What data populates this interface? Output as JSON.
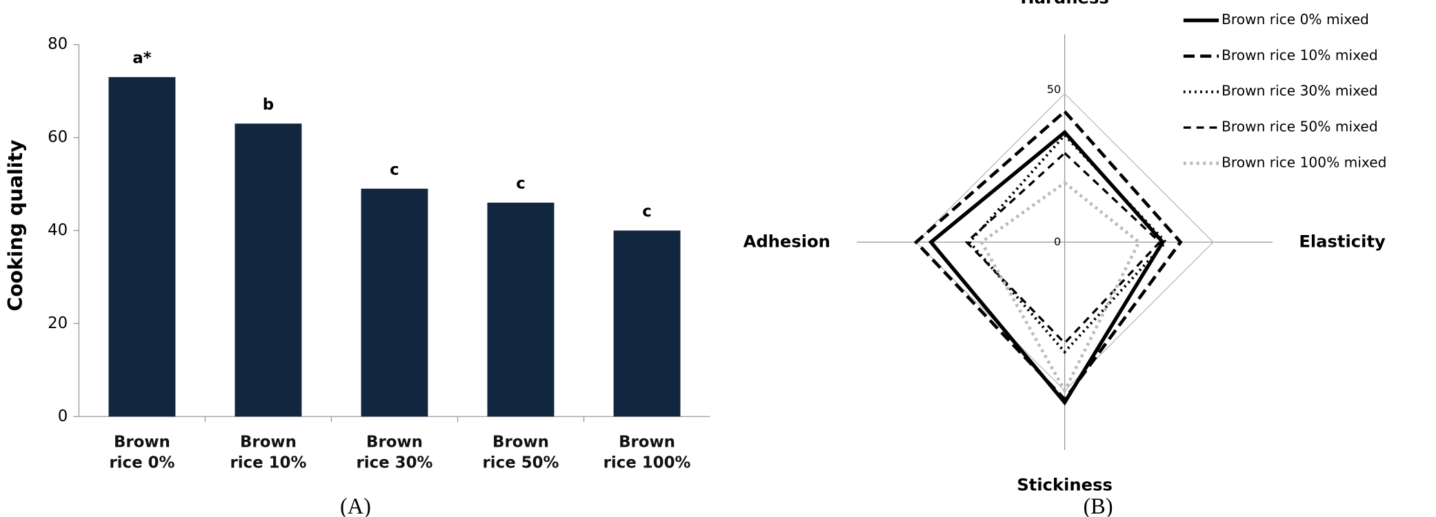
{
  "chart_data": [
    {
      "type": "bar",
      "caption": "(A)",
      "ylabel": "Cooking quality",
      "categories": [
        "Brown rice 0%",
        "Brown rice 10%",
        "Brown rice 30%",
        "Brown rice 50%",
        "Brown rice 100%"
      ],
      "values": [
        73,
        63,
        49,
        46,
        40
      ],
      "annotations": [
        "a*",
        "b",
        "c",
        "c",
        "c"
      ],
      "color": "#132640",
      "ylim": [
        0,
        80
      ],
      "yticks": [
        0,
        20,
        40,
        60,
        80
      ]
    },
    {
      "type": "radar",
      "caption": "(B)",
      "axes": [
        "Hardness",
        "Elasticity",
        "Stickiness",
        "Adhesion"
      ],
      "rlim": [
        0,
        70
      ],
      "rticks": [
        0,
        50
      ],
      "legend": "top-right",
      "series": [
        {
          "name": "Brown rice 0% mixed",
          "color": "#000000",
          "dash": "none",
          "width": 4,
          "values": [
            37,
            33,
            54,
            45
          ]
        },
        {
          "name": "Brown rice 10% mixed",
          "color": "#000000",
          "dash": "12 6",
          "width": 3.5,
          "values": [
            44,
            39,
            53,
            50
          ]
        },
        {
          "name": "Brown rice 30% mixed",
          "color": "#000000",
          "dash": "2 4",
          "width": 3,
          "values": [
            36,
            34,
            37,
            32
          ]
        },
        {
          "name": "Brown rice 50% mixed",
          "color": "#000000",
          "dash": "8 6",
          "width": 2.5,
          "values": [
            30,
            32,
            34,
            33
          ]
        },
        {
          "name": "Brown rice 100% mixed",
          "color": "#bbbbbb",
          "dash": "3 4",
          "width": 3.5,
          "values": [
            20,
            25,
            50,
            28
          ]
        }
      ]
    }
  ]
}
